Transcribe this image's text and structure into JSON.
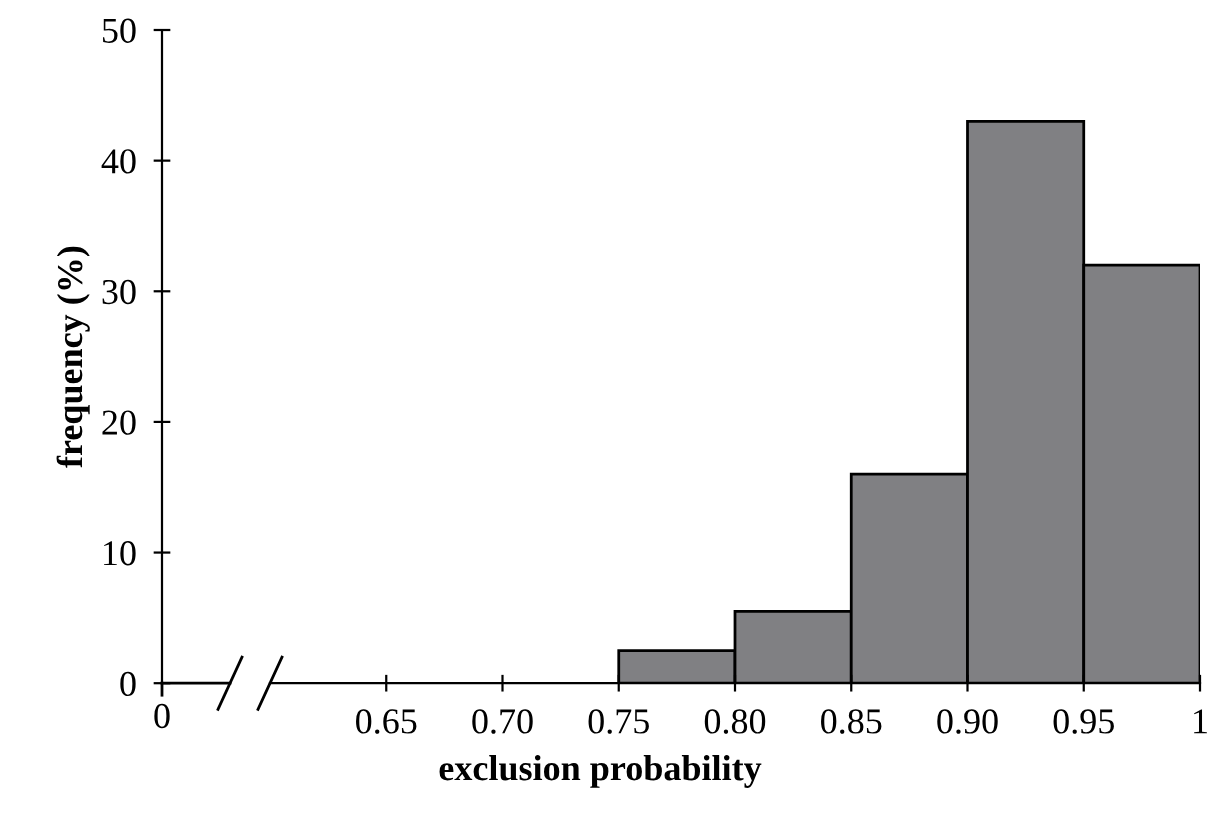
{
  "chart_data": {
    "type": "histogram",
    "xlabel": "exclusion probability",
    "ylabel": "frequency (%)",
    "bins": [
      0.75,
      0.8,
      0.85,
      0.9,
      0.95,
      1.0
    ],
    "values": [
      2.5,
      5.5,
      16,
      43,
      32
    ],
    "color": "#808083",
    "xlim": [
      0.6,
      1.0
    ],
    "xticks": [
      {
        "value": 0.65,
        "label": "0.65"
      },
      {
        "value": 0.7,
        "label": "0.70"
      },
      {
        "value": 0.75,
        "label": "0.75"
      },
      {
        "value": 0.8,
        "label": "0.80"
      },
      {
        "value": 0.85,
        "label": "0.85"
      },
      {
        "value": 0.9,
        "label": "0.90"
      },
      {
        "value": 0.95,
        "label": "0.95"
      },
      {
        "value": 1.0,
        "label": "1"
      }
    ],
    "ylim": [
      0,
      50
    ],
    "yticks": [
      0,
      10,
      20,
      30,
      40,
      50
    ],
    "grid": false,
    "annotations": [
      "0"
    ]
  }
}
